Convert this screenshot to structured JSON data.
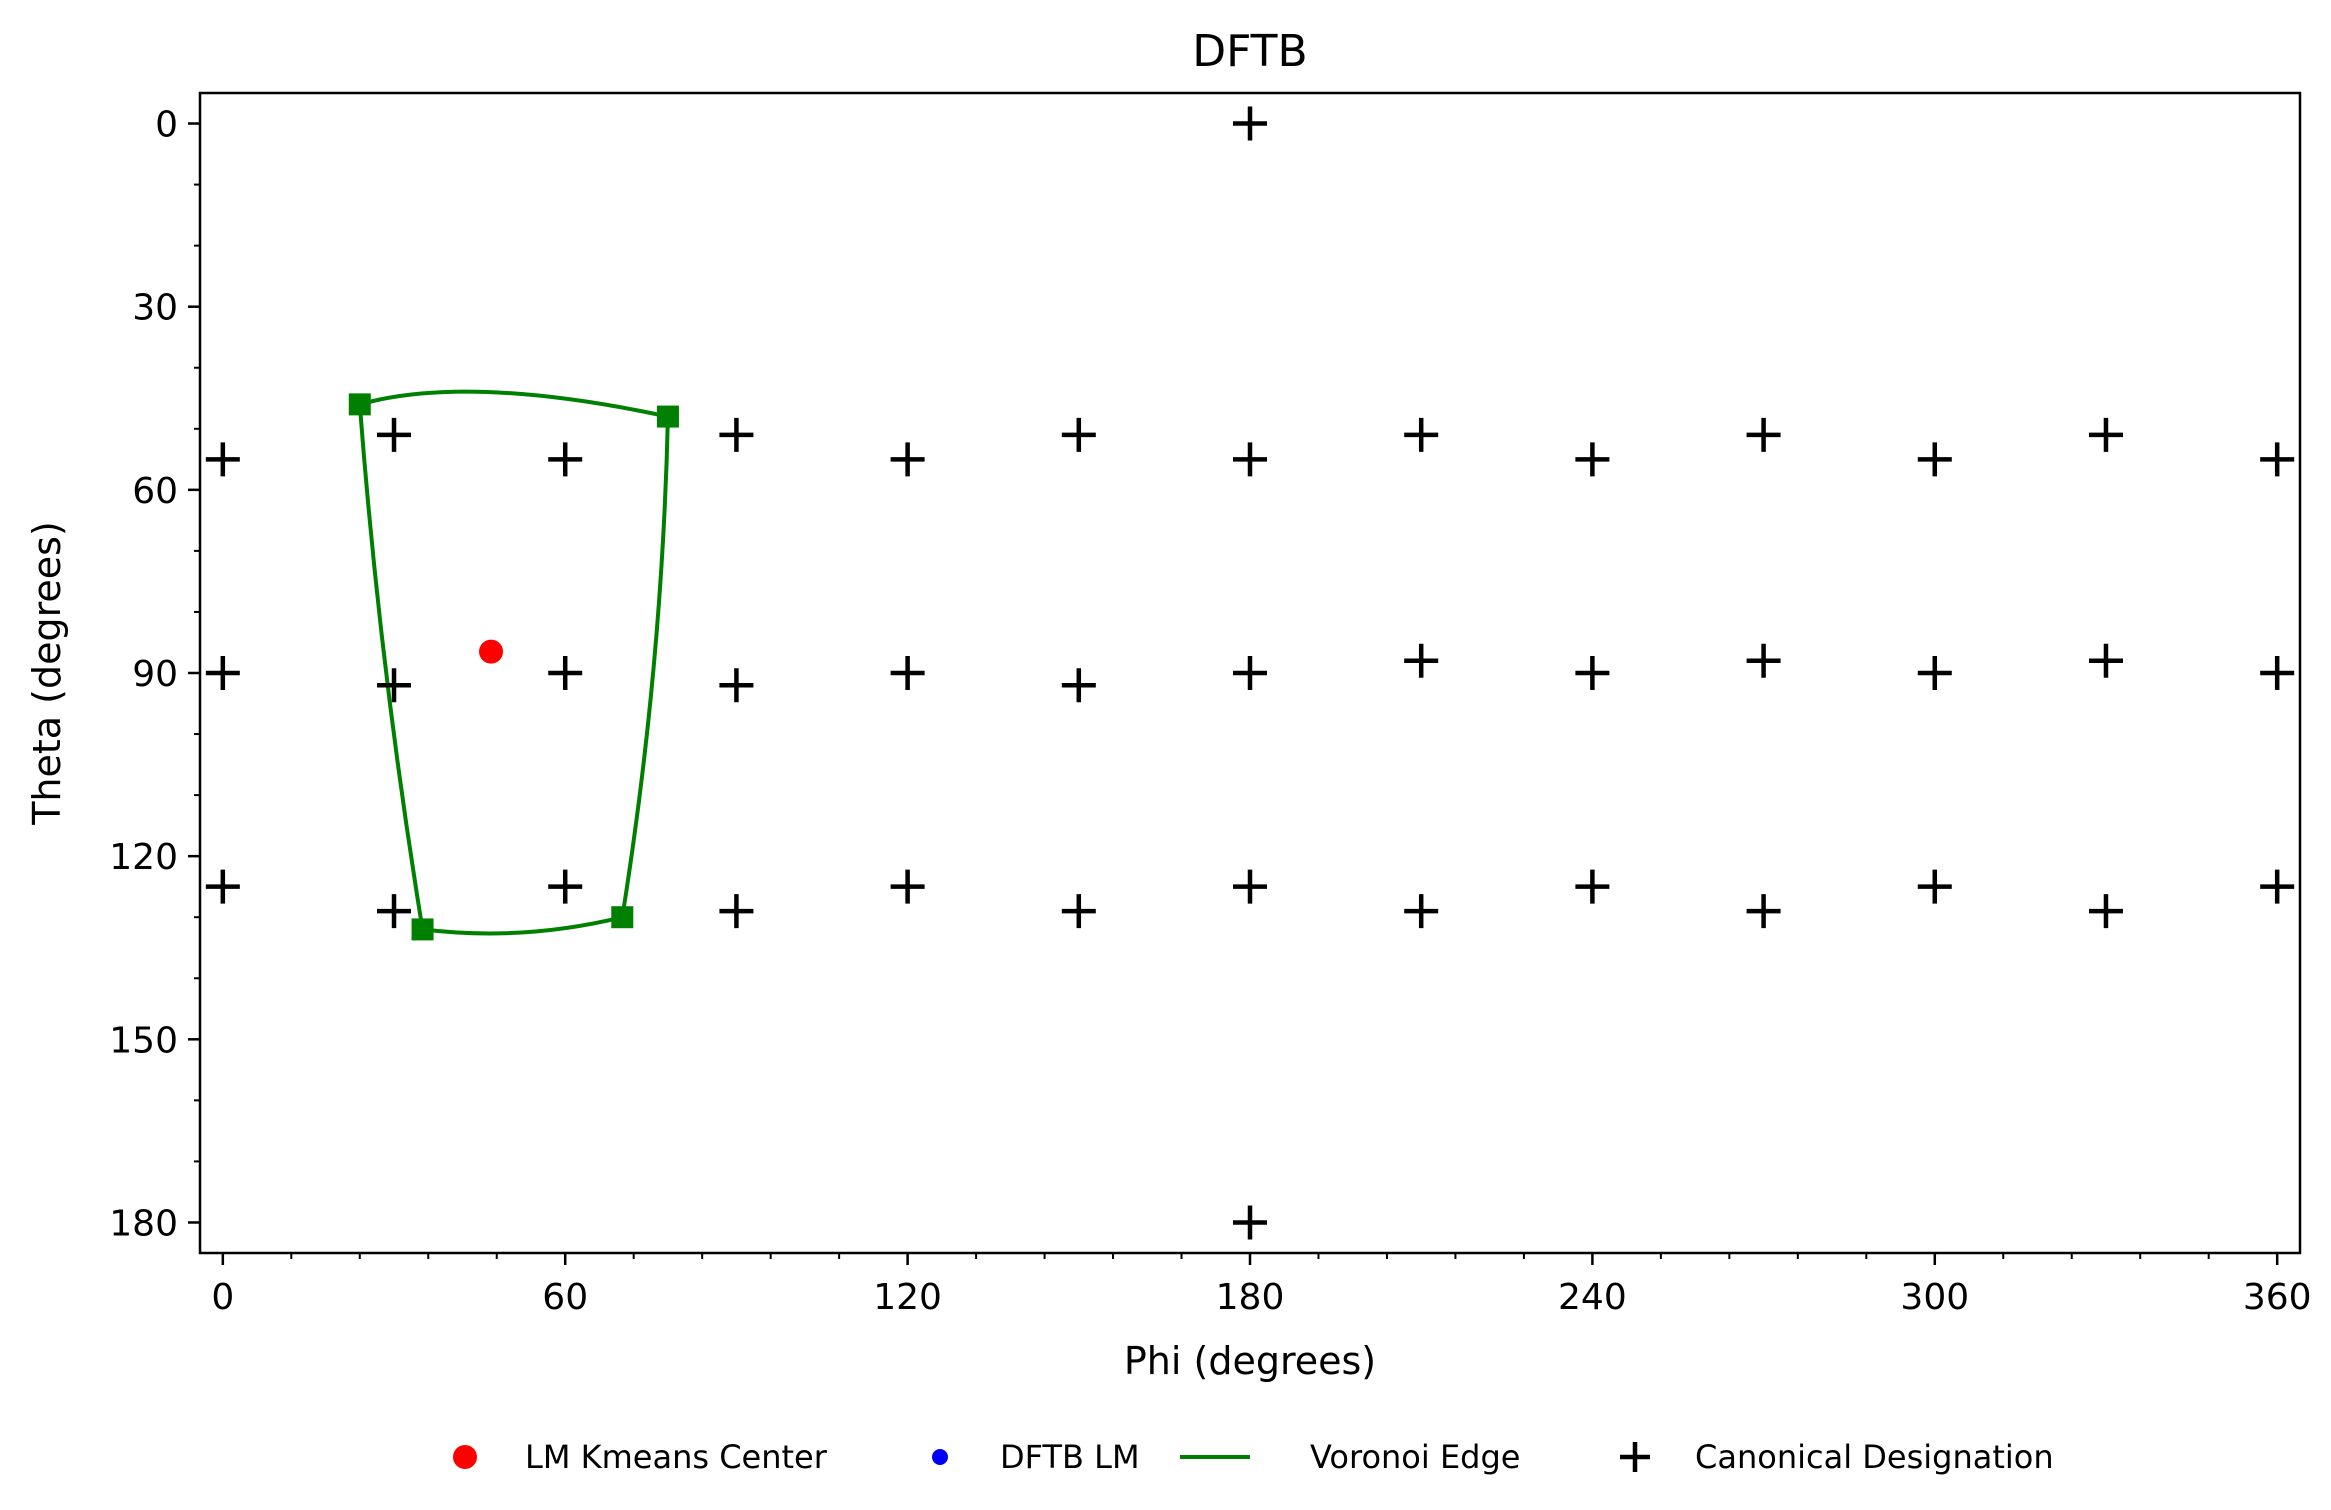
{
  "chart_data": {
    "type": "scatter",
    "title": "DFTB",
    "xlabel": "Phi (degrees)",
    "ylabel": "Theta (degrees)",
    "xlim": [
      -4,
      364
    ],
    "ylim": [
      185,
      -5
    ],
    "y_inverted": true,
    "xticks": [
      0,
      60,
      120,
      180,
      240,
      300,
      360
    ],
    "yticks": [
      0,
      30,
      60,
      90,
      120,
      150,
      180
    ],
    "x_minor_step": 12,
    "y_minor_step": 10,
    "grid": false,
    "legend_position": "bottom-center",
    "series": [
      {
        "name": "LM Kmeans Center",
        "kind": "points",
        "marker": "circle",
        "color": "#ff0000",
        "points": [
          [
            47,
            86.5
          ]
        ]
      },
      {
        "name": "DFTB LM",
        "kind": "points",
        "marker": "circle",
        "color": "#0000ff",
        "points": []
      },
      {
        "name": "Voronoi Edge",
        "kind": "line",
        "color": "#008000",
        "vertices": [
          [
            24,
            46
          ],
          [
            78,
            48
          ],
          [
            70,
            130
          ],
          [
            35,
            132
          ]
        ],
        "edges": [
          {
            "from": 0,
            "to": 1,
            "mid": [
              47,
              44
            ]
          },
          {
            "from": 1,
            "to": 2,
            "mid": [
              75.5,
              89
            ]
          },
          {
            "from": 2,
            "to": 3,
            "mid": [
              52.5,
              132.5
            ]
          },
          {
            "from": 3,
            "to": 0,
            "mid": [
              28.5,
              89
            ]
          }
        ]
      },
      {
        "name": "Canonical Designation",
        "kind": "points",
        "marker": "plus",
        "color": "#000000",
        "points": [
          [
            180,
            0
          ],
          [
            180,
            180
          ],
          [
            0,
            55
          ],
          [
            60,
            55
          ],
          [
            120,
            55
          ],
          [
            180,
            55
          ],
          [
            240,
            55
          ],
          [
            300,
            55
          ],
          [
            360,
            55
          ],
          [
            30,
            51
          ],
          [
            90,
            51
          ],
          [
            150,
            51
          ],
          [
            210,
            51
          ],
          [
            270,
            51
          ],
          [
            330,
            51
          ],
          [
            0,
            90
          ],
          [
            60,
            90
          ],
          [
            120,
            90
          ],
          [
            180,
            90
          ],
          [
            240,
            90
          ],
          [
            300,
            90
          ],
          [
            360,
            90
          ],
          [
            30,
            92
          ],
          [
            90,
            92
          ],
          [
            150,
            92
          ],
          [
            210,
            88
          ],
          [
            270,
            88
          ],
          [
            330,
            88
          ],
          [
            0,
            125
          ],
          [
            60,
            125
          ],
          [
            120,
            125
          ],
          [
            180,
            125
          ],
          [
            240,
            125
          ],
          [
            300,
            125
          ],
          [
            360,
            125
          ],
          [
            30,
            129
          ],
          [
            90,
            129
          ],
          [
            150,
            129
          ],
          [
            210,
            129
          ],
          [
            270,
            129
          ],
          [
            330,
            129
          ]
        ]
      }
    ],
    "legend": [
      {
        "label": "LM Kmeans Center",
        "marker": "circle",
        "color": "#ff0000"
      },
      {
        "label": "DFTB LM",
        "marker": "circle",
        "color": "#0000ff"
      },
      {
        "label": "Voronoi Edge",
        "marker": "line",
        "color": "#008000"
      },
      {
        "label": "Canonical Designation",
        "marker": "plus",
        "color": "#000000"
      }
    ]
  }
}
